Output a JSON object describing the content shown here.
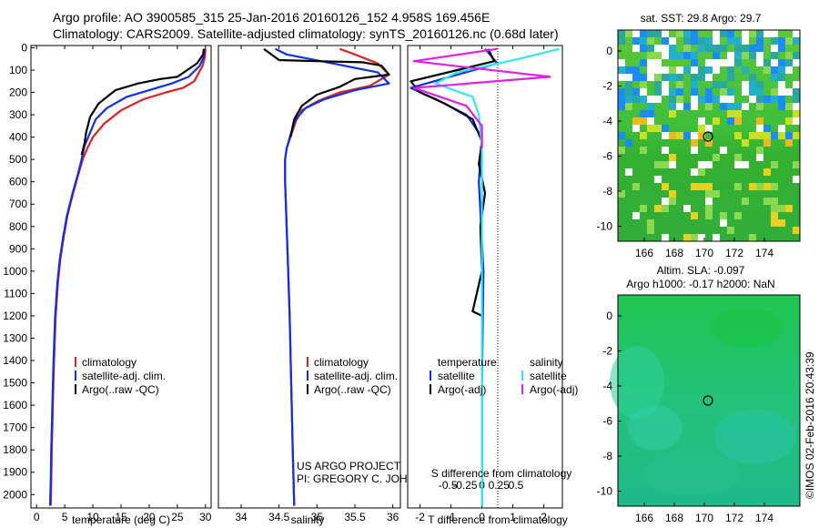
{
  "header": {
    "line1": "Argo profile: AO 3900585_315 25-Jan-2016 20160126_152 4.958S 169.456E",
    "line2": "Climatology: CARS2009. Satellite-adjusted climatology: synTS_20160126.nc (0.68d later)"
  },
  "colors": {
    "climatology": "#e02020",
    "satellite": "#1030e0",
    "argo": "#000000",
    "salinity_satellite": "#30e8f0",
    "salinity_argo": "#e020e0"
  },
  "chart_data": [
    {
      "type": "line",
      "name": "temperature-profile",
      "xlabel": "temperature (deg C)",
      "ylabel": "",
      "xlim": [
        -1,
        31
      ],
      "ylim": [
        2070,
        0
      ],
      "xticks": [
        "0",
        "5",
        "10",
        "15",
        "20",
        "25",
        "30"
      ],
      "xtick_values": [
        0,
        5,
        10,
        15,
        20,
        25,
        30
      ],
      "yticks": [
        "0",
        "100",
        "200",
        "300",
        "400",
        "500",
        "600",
        "700",
        "800",
        "900",
        "1000",
        "1100",
        "1200",
        "1300",
        "1400",
        "1500",
        "1600",
        "1700",
        "1800",
        "1900",
        "2000"
      ],
      "ytick_values": [
        0,
        100,
        200,
        300,
        400,
        500,
        600,
        700,
        800,
        900,
        1000,
        1100,
        1200,
        1300,
        1400,
        1500,
        1600,
        1700,
        1800,
        1900,
        2000
      ],
      "legend": [
        "climatology",
        "satellite-adj. clim.",
        "Argo(..raw -QC)"
      ],
      "series": [
        {
          "name": "climatology",
          "color": "#e02020",
          "x": [
            30,
            29.9,
            29.5,
            28,
            26,
            23,
            19,
            15,
            12,
            10,
            9,
            8.2,
            7.5,
            6.5,
            5.5,
            4.8,
            4.2,
            3.8,
            3.4,
            3.1,
            2.9,
            2.7,
            2.6,
            2.5
          ],
          "y": [
            5,
            40,
            80,
            150,
            180,
            200,
            230,
            280,
            340,
            400,
            450,
            500,
            560,
            650,
            750,
            850,
            950,
            1050,
            1200,
            1400,
            1600,
            1800,
            1950,
            2050
          ]
        },
        {
          "name": "satellite-adj. clim.",
          "color": "#1030e0",
          "x": [
            29.8,
            29.7,
            29,
            27,
            24,
            20,
            16,
            12.5,
            10.5,
            9.5,
            8.5,
            8,
            7.4,
            6.4,
            5.4,
            4.7,
            4.1,
            3.7,
            3.3,
            3,
            2.8,
            2.6,
            2.5,
            2.4
          ],
          "y": [
            5,
            40,
            80,
            130,
            160,
            190,
            220,
            270,
            320,
            380,
            440,
            500,
            560,
            650,
            750,
            850,
            950,
            1050,
            1200,
            1400,
            1600,
            1800,
            1950,
            2050
          ]
        },
        {
          "name": "Argo(..raw -QC)",
          "color": "#000000",
          "x": [
            29.7,
            29.6,
            28.5,
            25,
            22,
            18,
            14,
            11,
            9.5,
            8.8,
            8.5,
            8
          ],
          "y": [
            5,
            30,
            70,
            130,
            140,
            160,
            190,
            250,
            310,
            380,
            430,
            480
          ]
        }
      ]
    },
    {
      "type": "line",
      "name": "salinity-profile",
      "xlabel": "salinity",
      "xlim": [
        33.7,
        36.1
      ],
      "ylim": [
        2070,
        0
      ],
      "xticks": [
        "34",
        "34.5",
        "35",
        "35.5",
        "36"
      ],
      "xtick_values": [
        34,
        34.5,
        35,
        35.5,
        36
      ],
      "legend": [
        "climatology",
        "satellite-adj. clim.",
        "Argo(..raw -QC)"
      ],
      "series": [
        {
          "name": "climatology",
          "color": "#e02020",
          "x": [
            35.3,
            35.5,
            35.8,
            35.95,
            35.7,
            35.3,
            35.0,
            34.8,
            34.72,
            34.65,
            34.6,
            34.58,
            34.58,
            34.6,
            34.62,
            34.64,
            34.66,
            34.68,
            34.7
          ],
          "y": [
            5,
            30,
            70,
            120,
            170,
            200,
            240,
            280,
            330,
            400,
            450,
            500,
            600,
            800,
            1000,
            1200,
            1500,
            1800,
            2050
          ]
        },
        {
          "name": "satellite-adj. clim.",
          "color": "#1030e0",
          "x": [
            34.45,
            34.6,
            35.2,
            35.8,
            35.95,
            35.5,
            35.1,
            34.85,
            34.72,
            34.65,
            34.6,
            34.58,
            34.58,
            34.6,
            34.62,
            34.64,
            34.66,
            34.68,
            34.7
          ],
          "y": [
            5,
            30,
            70,
            110,
            160,
            190,
            230,
            270,
            320,
            390,
            450,
            500,
            600,
            800,
            1000,
            1200,
            1500,
            1800,
            2050
          ]
        },
        {
          "name": "Argo(..raw -QC)",
          "color": "#000000",
          "x": [
            34.3,
            34.5,
            35.0,
            35.6,
            35.85,
            35.95,
            35.5,
            35.3,
            35.0,
            34.8,
            34.7,
            34.65
          ],
          "y": [
            5,
            55,
            60,
            65,
            80,
            120,
            140,
            175,
            210,
            260,
            320,
            400
          ]
        }
      ]
    },
    {
      "type": "line",
      "name": "difference-profile",
      "xlabel_bottom": "T difference from climatology",
      "xlabel_top": "S difference from climatology",
      "xlim": [
        -2.4,
        2.6
      ],
      "ylim": [
        2070,
        0
      ],
      "xticks_bottom": [
        "-2",
        "-1",
        "0",
        "1",
        "2"
      ],
      "xtick_values_bottom": [
        -2,
        -1,
        0,
        1,
        2
      ],
      "xticks_top": [
        "-0.5",
        "-0.25",
        "0",
        "0.25",
        "0.5"
      ],
      "xtick_values_top": [
        -0.5,
        -0.25,
        0,
        0.25,
        0.5
      ],
      "legend_temperature_title": "temperature",
      "legend_salinity_title": "salinity",
      "legend": [
        "satellite",
        "Argo(-adj)",
        "satellite",
        "Argo(-adj)"
      ],
      "series": [
        {
          "name": "T satellite",
          "color": "#1030e0",
          "x": [
            0.1,
            0.5,
            -2.3,
            -1.5,
            -0.5,
            0,
            -0.1,
            0.05,
            0,
            0
          ],
          "y": [
            5,
            70,
            180,
            230,
            300,
            400,
            600,
            1000,
            1500,
            2050
          ]
        },
        {
          "name": "T Argo(-adj)",
          "color": "#000000",
          "x": [
            0.2,
            0.4,
            -2.3,
            -2.0,
            -1.2,
            -0.3,
            0,
            -0.1,
            0.1,
            -0.05,
            0,
            -0.3,
            0
          ],
          "y": [
            5,
            60,
            150,
            200,
            250,
            320,
            420,
            520,
            650,
            800,
            1000,
            1180,
            1200
          ]
        },
        {
          "name": "S satellite",
          "color": "#30e8f0",
          "x": [
            2.5,
            1.2,
            -0.8,
            -1.5,
            -0.3,
            -0.1,
            0,
            0,
            0,
            0
          ],
          "y": [
            5,
            50,
            110,
            160,
            220,
            300,
            450,
            800,
            1400,
            2050
          ]
        },
        {
          "name": "S Argo(-adj)",
          "color": "#e020e0",
          "x": [
            0.5,
            -2.2,
            2.2,
            -2.2,
            -0.5,
            0,
            0
          ],
          "y": [
            5,
            60,
            130,
            180,
            260,
            350,
            450
          ]
        }
      ]
    }
  ],
  "map_top": {
    "title": "sat. SST: 29.8 Argo: 29.7",
    "xticks": [
      "166",
      "168",
      "170",
      "172",
      "174"
    ],
    "yticks": [
      "0",
      "-2",
      "-4",
      "-6",
      "-8",
      "-10"
    ]
  },
  "map_bottom": {
    "title1": "Altim. SLA: -0.097",
    "title2": "Argo h1000: -0.17 h2000: NaN",
    "xticks": [
      "166",
      "168",
      "170",
      "172",
      "174"
    ],
    "yticks": [
      "0",
      "-2",
      "-4",
      "-6",
      "-8",
      "-10"
    ]
  },
  "credits": {
    "project": "US ARGO PROJECT",
    "pi": "PI: GREGORY C. JOHNSON",
    "stamp": "©IMOS 02-Feb-2016 20:43:39"
  }
}
